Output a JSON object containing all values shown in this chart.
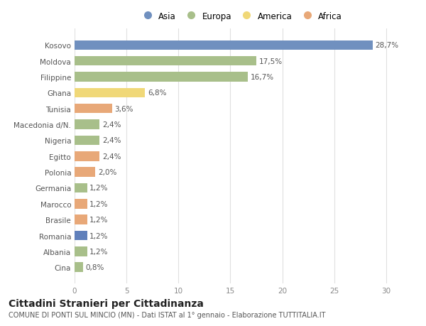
{
  "categories": [
    "Cina",
    "Albania",
    "Romania",
    "Brasile",
    "Marocco",
    "Germania",
    "Polonia",
    "Egitto",
    "Nigeria",
    "Macedonia d/N.",
    "Tunisia",
    "Ghana",
    "Filippine",
    "Moldova",
    "Kosovo"
  ],
  "values": [
    28.7,
    17.5,
    16.7,
    6.8,
    3.6,
    2.4,
    2.4,
    2.4,
    2.0,
    1.2,
    1.2,
    1.2,
    1.2,
    1.2,
    0.8
  ],
  "labels": [
    "28,7%",
    "17,5%",
    "16,7%",
    "6,8%",
    "3,6%",
    "2,4%",
    "2,4%",
    "2,4%",
    "2,0%",
    "1,2%",
    "1,2%",
    "1,2%",
    "1,2%",
    "1,2%",
    "0,8%"
  ],
  "colors": [
    "#7090bf",
    "#a8bf8a",
    "#a8bf8a",
    "#f0d878",
    "#e8a878",
    "#a8bf8a",
    "#a8bf8a",
    "#e8a878",
    "#e8a878",
    "#a8bf8a",
    "#e8a878",
    "#e8a878",
    "#6080bb",
    "#a8bf8a",
    "#a8bf8a"
  ],
  "legend_labels": [
    "Asia",
    "Europa",
    "America",
    "Africa"
  ],
  "legend_colors": [
    "#7090bf",
    "#a8bf8a",
    "#f0d878",
    "#e8a878"
  ],
  "xlim": [
    0,
    32
  ],
  "xticks": [
    0,
    5,
    10,
    15,
    20,
    25,
    30
  ],
  "title": "Cittadini Stranieri per Cittadinanza",
  "subtitle": "COMUNE DI PONTI SUL MINCIO (MN) - Dati ISTAT al 1° gennaio - Elaborazione TUTTITALIA.IT",
  "background_color": "#ffffff",
  "plot_bg_color": "#ffffff",
  "grid_color": "#e0e0e0",
  "bar_height": 0.6,
  "label_fontsize": 7.5,
  "tick_fontsize": 7.5,
  "ytick_fontsize": 7.5,
  "title_fontsize": 10,
  "subtitle_fontsize": 7,
  "legend_fontsize": 8.5
}
